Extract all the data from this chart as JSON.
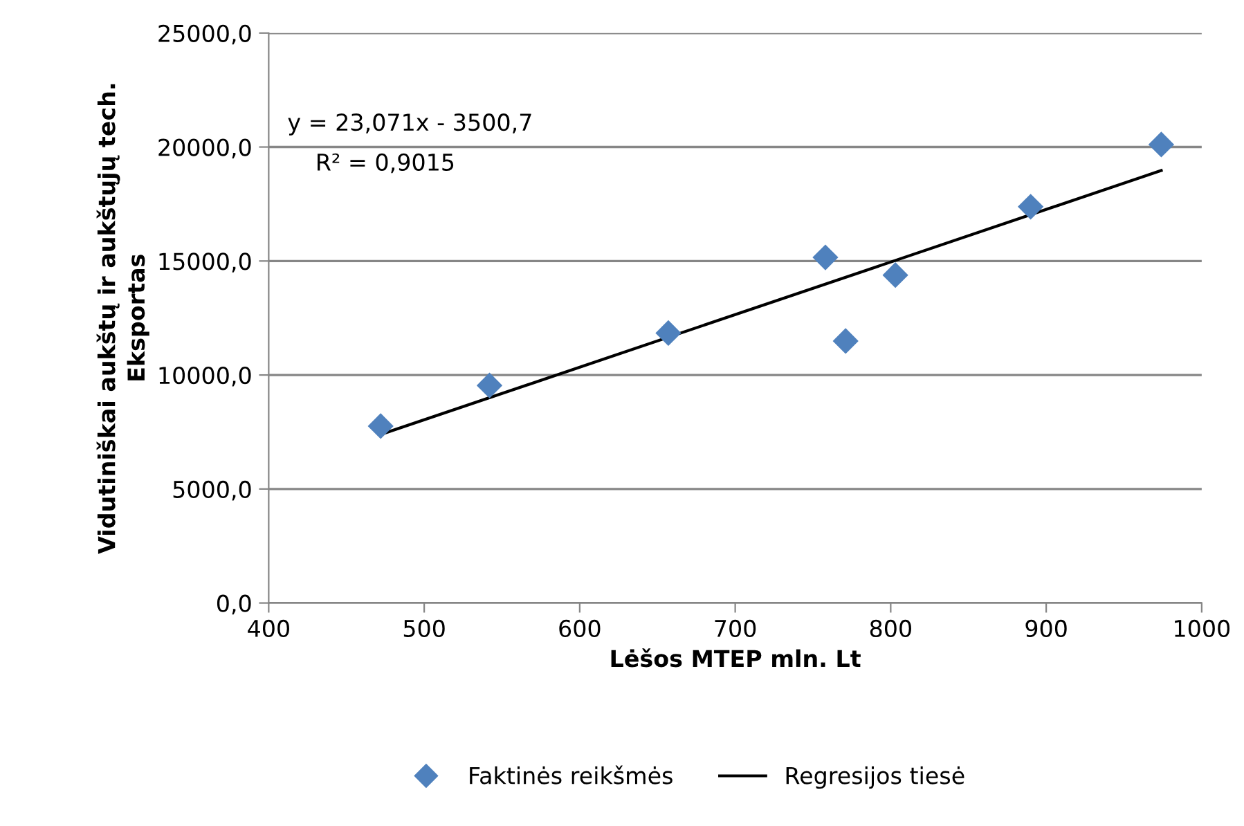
{
  "chart_data": {
    "type": "scatter",
    "xlabel": "Lėšos MTEP mln. Lt",
    "ylabel": "Vidutiniškai aukštų ir aukštųjų tech.\nEksportas",
    "series": [
      {
        "name": "Faktinės reikšmės",
        "color": "#4f81bd",
        "marker": "diamond",
        "x": [
          472,
          542,
          657,
          758,
          771,
          803,
          890,
          974
        ],
        "values": [
          7760,
          9540,
          11840,
          15160,
          11490,
          14380,
          17380,
          20110
        ]
      },
      {
        "name": "Regresijos tiesė",
        "type": "line",
        "color": "#000000",
        "marker": "none",
        "line_style": "solid",
        "x": [
          472,
          974
        ],
        "values": [
          7390,
          18970
        ]
      }
    ],
    "annotations": [
      "y = 23,071x - 3500,7",
      "R² = 0,9015"
    ],
    "xlim": [
      400,
      1000
    ],
    "xticks": [
      400,
      500,
      600,
      700,
      800,
      900,
      1000
    ],
    "ylim": [
      0,
      25000
    ],
    "yticks": [
      {
        "value": 0,
        "label": "0,0"
      },
      {
        "value": 5000,
        "label": "5000,0"
      },
      {
        "value": 10000,
        "label": "10000,0"
      },
      {
        "value": 15000,
        "label": "15000,0"
      },
      {
        "value": 20000,
        "label": "20000,0"
      },
      {
        "value": 25000,
        "label": "25000,0"
      }
    ],
    "grid": "y",
    "legend": "bottom"
  }
}
